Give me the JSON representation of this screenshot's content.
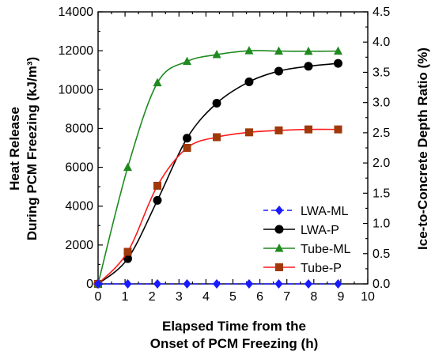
{
  "chart_data": {
    "type": "line",
    "xlabel_lines": [
      "Elapsed Time from the",
      "Onset of PCM Freezing (h)"
    ],
    "ylabel_left_lines": [
      "Heat Release",
      "During PCM Freezing (kJ/m³)"
    ],
    "ylabel_right": "Ice-to-Concrete Depth Ratio (%)",
    "xlim": [
      0,
      10
    ],
    "ylim_left": [
      0,
      14000
    ],
    "ylim_right": [
      0,
      4.5
    ],
    "x_ticks": [
      "0",
      "1",
      "2",
      "3",
      "4",
      "5",
      "6",
      "7",
      "8",
      "9",
      "10"
    ],
    "y_left_ticks": [
      "0",
      "2000",
      "4000",
      "6000",
      "8000",
      "10000",
      "12000",
      "14000"
    ],
    "y_right_ticks": [
      "0.0",
      "0.5",
      "1.0",
      "1.5",
      "2.0",
      "2.5",
      "3.0",
      "3.5",
      "4.0",
      "4.5"
    ],
    "legend_position": "center-right",
    "series": [
      {
        "name": "LWA-ML",
        "color": "#1a1aff",
        "marker": "diamond",
        "line_style": "dashed",
        "x": [
          0,
          1.1,
          2.2,
          3.3,
          4.4,
          5.6,
          6.7,
          7.8,
          8.9
        ],
        "y": [
          0,
          0,
          0,
          0,
          0,
          0,
          0,
          0,
          0
        ]
      },
      {
        "name": "LWA-P",
        "color": "#000000",
        "marker": "circle",
        "line_style": "solid",
        "x": [
          0,
          1.1,
          2.2,
          3.3,
          4.4,
          5.6,
          6.7,
          7.8,
          8.9
        ],
        "y": [
          0,
          1300,
          4300,
          7500,
          9300,
          10400,
          10950,
          11200,
          11350
        ]
      },
      {
        "name": "Tube-ML",
        "color": "#1f8a1f",
        "marker": "triangle",
        "line_style": "solid",
        "x": [
          0,
          1.1,
          2.2,
          3.3,
          4.4,
          5.6,
          6.7,
          7.8,
          8.9
        ],
        "y": [
          0,
          6000,
          10350,
          11450,
          11800,
          12000,
          11980,
          11970,
          11980
        ]
      },
      {
        "name": "Tube-P",
        "color": "#ff1a1a",
        "marker_color": "#a0380a",
        "marker": "square",
        "line_style": "solid",
        "x": [
          0,
          1.1,
          2.2,
          3.3,
          4.4,
          5.6,
          6.7,
          7.8,
          8.9
        ],
        "y": [
          0,
          1650,
          5050,
          7000,
          7550,
          7800,
          7900,
          7950,
          7950
        ]
      }
    ]
  }
}
